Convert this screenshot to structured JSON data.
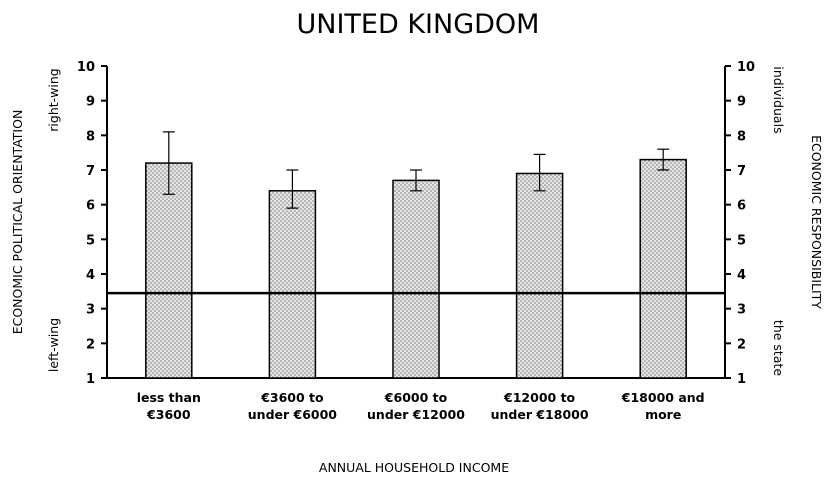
{
  "chart_data": {
    "type": "bar",
    "title": "UNITED KINGDOM",
    "xlabel": "ANNUAL HOUSEHOLD INCOME",
    "ylabel": "ECONOMIC POLITICAL ORIENTATION",
    "y2label": "ECONOMIC RESPONSIBILITY",
    "y_top_label": "right-wing",
    "y_bottom_label": "left-wing",
    "y2_top_label": "individuals",
    "y2_bottom_label": "the state",
    "ylim": [
      1,
      10
    ],
    "yticks": [
      "1",
      "2",
      "3",
      "4",
      "5",
      "6",
      "7",
      "8",
      "9",
      "10"
    ],
    "categories": [
      [
        "less than",
        "€3600"
      ],
      [
        "€3600 to",
        "under €6000"
      ],
      [
        "€6000 to",
        "under €12000"
      ],
      [
        "€12000 to",
        "under €18000"
      ],
      [
        "€18000 and",
        "more"
      ]
    ],
    "values": [
      7.2,
      6.4,
      6.7,
      6.9,
      7.3
    ],
    "error_low": [
      6.3,
      5.9,
      6.4,
      6.4,
      7.0
    ],
    "error_high": [
      8.1,
      7.0,
      7.0,
      7.45,
      7.6
    ],
    "reference_line": 3.45,
    "grid": false,
    "bar_pattern": "dotted",
    "colors": {
      "bar_fill": "#e6e6e6",
      "bar_dots": "#7a7a7a",
      "stroke": "#000000"
    }
  }
}
